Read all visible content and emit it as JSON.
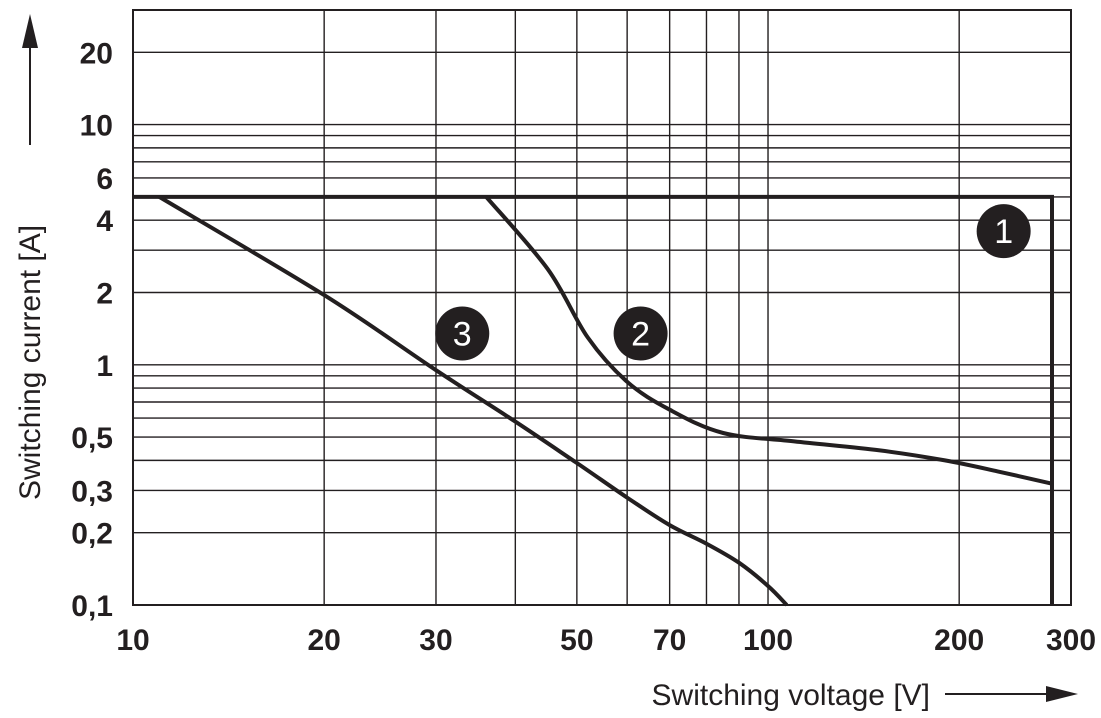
{
  "chart_data": {
    "type": "line",
    "title": "",
    "xlabel": "Switching voltage [V]",
    "ylabel": "Switching current [A]",
    "x_scale": "log",
    "y_scale": "log",
    "xlim": [
      10,
      300
    ],
    "ylim": [
      0.1,
      30
    ],
    "grid": true,
    "x_ticks": [
      {
        "value": 10,
        "label": "10"
      },
      {
        "value": 20,
        "label": "20"
      },
      {
        "value": 30,
        "label": "30"
      },
      {
        "value": 50,
        "label": "50"
      },
      {
        "value": 70,
        "label": "70"
      },
      {
        "value": 100,
        "label": "100"
      },
      {
        "value": 200,
        "label": "200"
      },
      {
        "value": 300,
        "label": "300"
      }
    ],
    "y_ticks": [
      {
        "value": 0.1,
        "label": "0,1"
      },
      {
        "value": 0.2,
        "label": "0,2"
      },
      {
        "value": 0.3,
        "label": "0,3"
      },
      {
        "value": 0.5,
        "label": "0,5"
      },
      {
        "value": 1,
        "label": "1"
      },
      {
        "value": 2,
        "label": "2"
      },
      {
        "value": 4,
        "label": "4"
      },
      {
        "value": 6,
        "label": "6"
      },
      {
        "value": 10,
        "label": "10"
      },
      {
        "value": 20,
        "label": "20"
      }
    ],
    "x_grid": [
      20,
      30,
      40,
      50,
      60,
      70,
      80,
      90,
      100,
      200
    ],
    "y_grid": [
      0.2,
      0.3,
      0.4,
      0.5,
      0.6,
      0.7,
      0.8,
      0.9,
      1,
      2,
      3,
      4,
      5,
      6,
      7,
      8,
      9,
      10,
      20
    ],
    "series": [
      {
        "marker": "1",
        "points": [
          [
            10,
            5
          ],
          [
            280,
            5
          ],
          [
            280,
            0.1
          ]
        ]
      },
      {
        "marker": "2",
        "points": [
          [
            36,
            5
          ],
          [
            45,
            2.5
          ],
          [
            52,
            1.3
          ],
          [
            60,
            0.85
          ],
          [
            70,
            0.65
          ],
          [
            85,
            0.52
          ],
          [
            110,
            0.48
          ],
          [
            150,
            0.44
          ],
          [
            190,
            0.4
          ],
          [
            230,
            0.36
          ],
          [
            280,
            0.32
          ]
        ]
      },
      {
        "marker": "3",
        "points": [
          [
            11,
            5
          ],
          [
            20,
            1.95
          ],
          [
            30,
            0.95
          ],
          [
            40,
            0.58
          ],
          [
            50,
            0.39
          ],
          [
            60,
            0.28
          ],
          [
            70,
            0.215
          ],
          [
            80,
            0.18
          ],
          [
            90,
            0.15
          ],
          [
            100,
            0.12
          ],
          [
            107,
            0.1
          ]
        ]
      }
    ],
    "markers": [
      {
        "label": "1",
        "x": 235,
        "y": 3.6
      },
      {
        "label": "2",
        "x": 63,
        "y": 1.35
      },
      {
        "label": "3",
        "x": 33,
        "y": 1.35
      }
    ]
  }
}
